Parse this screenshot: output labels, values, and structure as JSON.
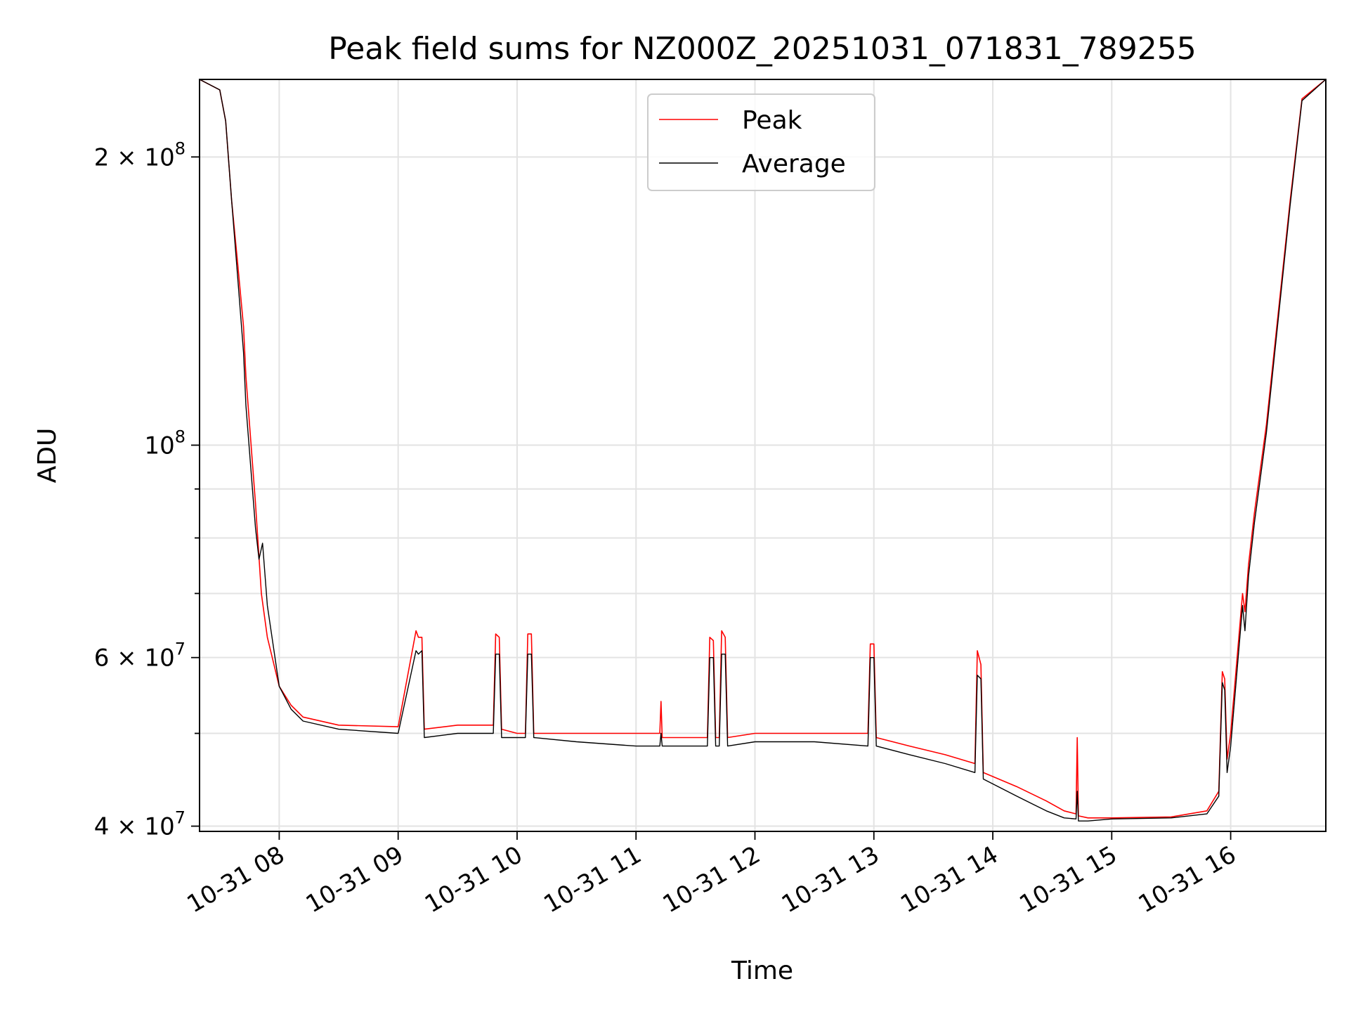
{
  "chart_data": {
    "type": "line",
    "title": "Peak field sums for NZ000Z_20251031_071831_789255",
    "xlabel": "Time",
    "ylabel": "ADU",
    "yscale": "log",
    "xlim": [
      7.33,
      16.8
    ],
    "ylim": [
      39500000,
      241000000
    ],
    "x_unit": "hours since 2025-10-31 00:00",
    "x_ticks": [
      {
        "value": 8,
        "label": "10-31 08"
      },
      {
        "value": 9,
        "label": "10-31 09"
      },
      {
        "value": 10,
        "label": "10-31 10"
      },
      {
        "value": 11,
        "label": "10-31 11"
      },
      {
        "value": 12,
        "label": "10-31 12"
      },
      {
        "value": 13,
        "label": "10-31 13"
      },
      {
        "value": 14,
        "label": "10-31 14"
      },
      {
        "value": 15,
        "label": "10-31 15"
      },
      {
        "value": 16,
        "label": "10-31 16"
      }
    ],
    "y_ticks": [
      {
        "value": 40000000,
        "base": "4 × 10",
        "exp": "7"
      },
      {
        "value": 60000000,
        "base": "6 × 10",
        "exp": "7"
      },
      {
        "value": 100000000,
        "base": "10",
        "exp": "8"
      },
      {
        "value": 200000000,
        "base": "2 × 10",
        "exp": "8"
      }
    ],
    "y_minor_grid": [
      50000000,
      70000000,
      80000000,
      90000000
    ],
    "legend": {
      "position": "upper-center",
      "entries": [
        "Peak",
        "Average"
      ]
    },
    "grid": true,
    "series": [
      {
        "name": "Peak",
        "color": "#ff0000",
        "x": [
          7.33,
          7.5,
          7.55,
          7.6,
          7.65,
          7.7,
          7.72,
          7.8,
          7.85,
          7.9,
          8.0,
          8.1,
          8.2,
          8.5,
          9.0,
          9.15,
          9.17,
          9.2,
          9.22,
          9.5,
          9.8,
          9.82,
          9.85,
          9.87,
          10.0,
          10.07,
          10.09,
          10.12,
          10.14,
          10.5,
          11.0,
          11.2,
          11.21,
          11.22,
          11.5,
          11.6,
          11.62,
          11.65,
          11.67,
          11.7,
          11.72,
          11.75,
          11.77,
          12.0,
          12.5,
          12.95,
          12.97,
          13.0,
          13.02,
          13.3,
          13.6,
          13.85,
          13.87,
          13.9,
          13.92,
          14.2,
          14.45,
          14.6,
          14.7,
          14.71,
          14.72,
          14.8,
          15.0,
          15.5,
          15.8,
          15.9,
          15.93,
          15.95,
          15.97,
          16.0,
          16.1,
          16.12,
          16.15,
          16.2,
          16.3,
          16.5,
          16.6,
          16.8
        ],
        "y": [
          241000000,
          235000000,
          218000000,
          180000000,
          155000000,
          133000000,
          118000000,
          87000000,
          70000000,
          63000000,
          56000000,
          53500000,
          52000000,
          51000000,
          50800000,
          64000000,
          63000000,
          63000000,
          50500000,
          51000000,
          51000000,
          63500000,
          63000000,
          50500000,
          50000000,
          50000000,
          63500000,
          63500000,
          50000000,
          50000000,
          50000000,
          50000000,
          54000000,
          49500000,
          49500000,
          49500000,
          63000000,
          62500000,
          49500000,
          49500000,
          64000000,
          63000000,
          49500000,
          50000000,
          50000000,
          50000000,
          62000000,
          62000000,
          49500000,
          48500000,
          47500000,
          46500000,
          61000000,
          59000000,
          45500000,
          44000000,
          42500000,
          41500000,
          41200000,
          49500000,
          41000000,
          40800000,
          40800000,
          40900000,
          41500000,
          43500000,
          58000000,
          57000000,
          47000000,
          50000000,
          70000000,
          67000000,
          75000000,
          85000000,
          105000000,
          180000000,
          230000000,
          241000000
        ]
      },
      {
        "name": "Average",
        "color": "#000000",
        "x": [
          7.33,
          7.5,
          7.55,
          7.6,
          7.65,
          7.7,
          7.72,
          7.8,
          7.83,
          7.86,
          7.9,
          8.0,
          8.1,
          8.2,
          8.5,
          9.0,
          9.15,
          9.17,
          9.2,
          9.22,
          9.5,
          9.8,
          9.82,
          9.85,
          9.87,
          10.0,
          10.07,
          10.09,
          10.12,
          10.14,
          10.5,
          11.0,
          11.2,
          11.21,
          11.22,
          11.5,
          11.6,
          11.62,
          11.65,
          11.67,
          11.7,
          11.72,
          11.75,
          11.77,
          12.0,
          12.5,
          12.95,
          12.97,
          13.0,
          13.02,
          13.3,
          13.6,
          13.85,
          13.87,
          13.9,
          13.92,
          14.2,
          14.45,
          14.6,
          14.7,
          14.71,
          14.72,
          14.8,
          15.0,
          15.5,
          15.8,
          15.9,
          15.93,
          15.95,
          15.97,
          16.0,
          16.1,
          16.12,
          16.15,
          16.2,
          16.3,
          16.5,
          16.6,
          16.8
        ],
        "y": [
          241000000,
          235000000,
          218000000,
          180000000,
          150000000,
          125000000,
          110000000,
          82000000,
          76000000,
          79000000,
          68000000,
          56000000,
          53000000,
          51500000,
          50500000,
          50000000,
          61000000,
          60500000,
          61000000,
          49500000,
          50000000,
          50000000,
          60500000,
          60500000,
          49500000,
          49500000,
          49500000,
          60500000,
          60500000,
          49500000,
          49000000,
          48500000,
          48500000,
          50000000,
          48500000,
          48500000,
          48500000,
          60000000,
          60000000,
          48500000,
          48500000,
          60500000,
          60500000,
          48500000,
          49000000,
          49000000,
          48500000,
          60000000,
          60000000,
          48500000,
          47500000,
          46500000,
          45500000,
          57500000,
          57000000,
          44800000,
          43000000,
          41500000,
          40800000,
          40700000,
          43500000,
          40500000,
          40500000,
          40700000,
          40800000,
          41200000,
          43000000,
          56500000,
          55500000,
          45500000,
          48500000,
          68000000,
          64000000,
          73000000,
          83000000,
          103000000,
          178000000,
          229000000,
          241000000
        ]
      }
    ]
  }
}
